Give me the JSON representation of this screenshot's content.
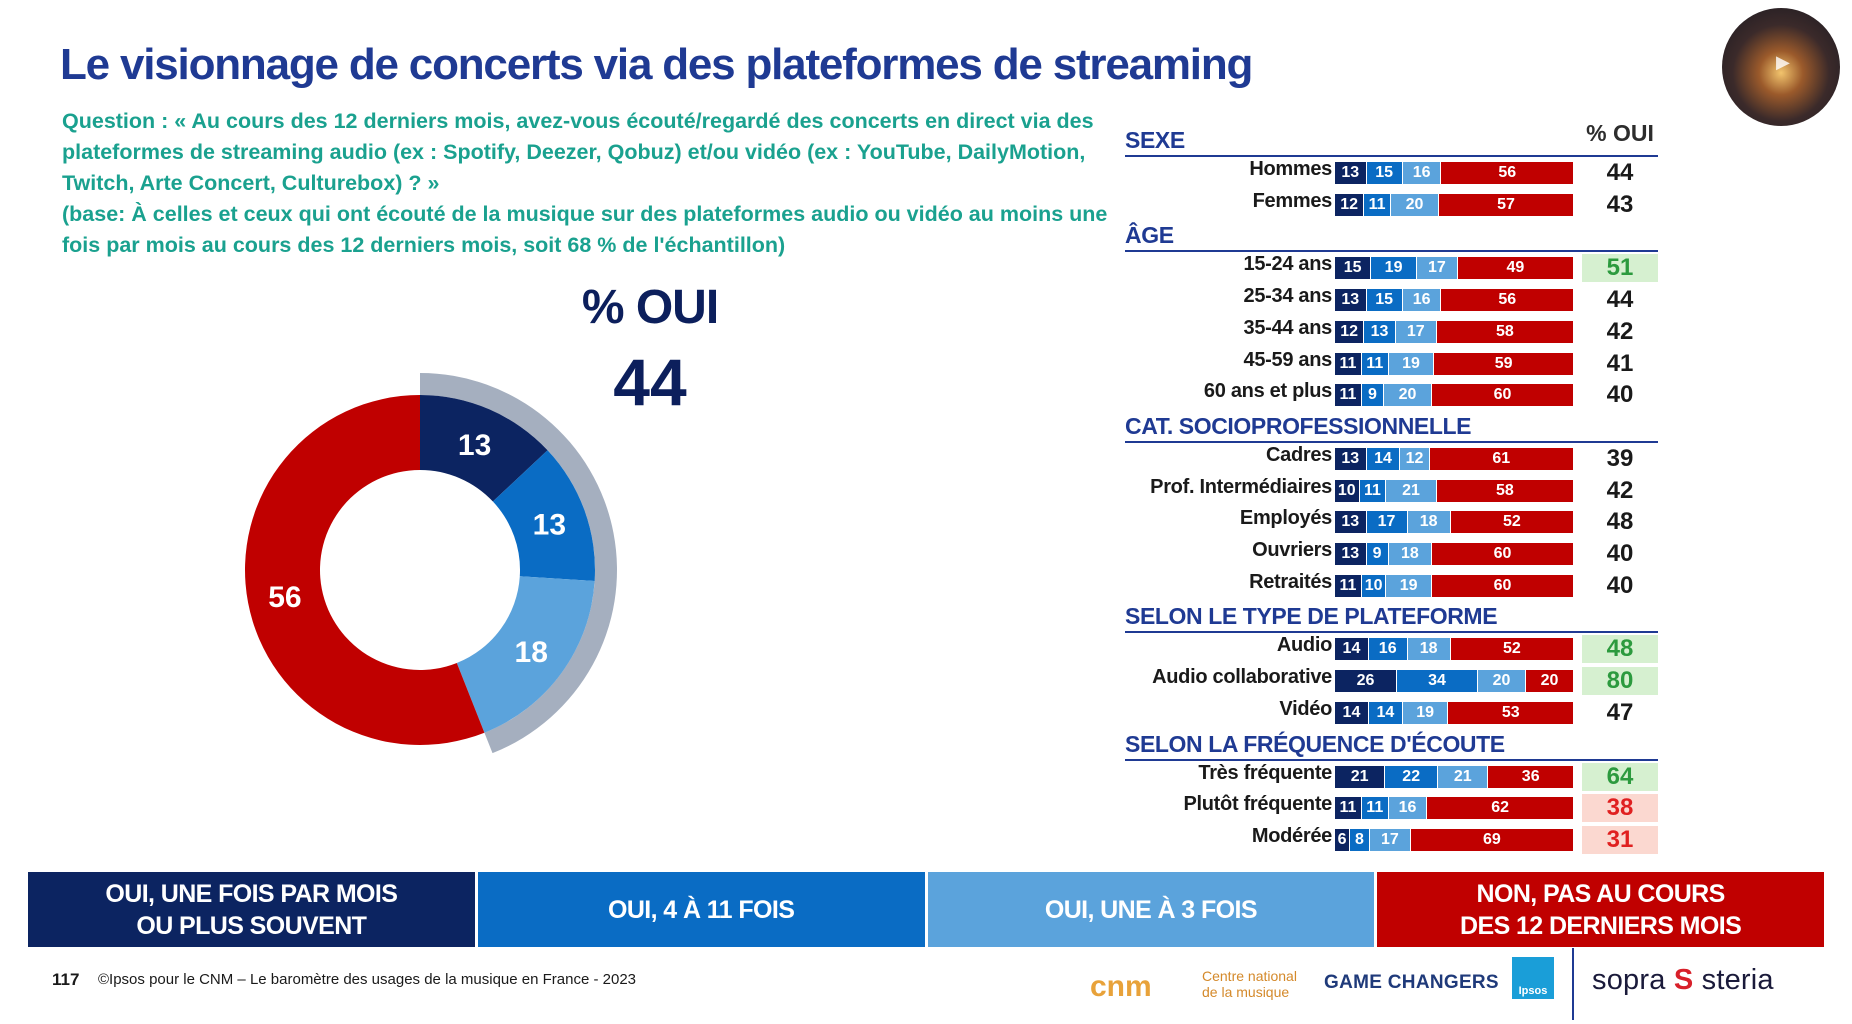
{
  "title": "Le visionnage de concerts via des plateformes de streaming",
  "question": "Question : « Au cours des 12 derniers mois, avez-vous écouté/regardé des concerts en direct via des plateformes de streaming audio (ex : Spotify, Deezer, Qobuz) et/ou vidéo (ex : YouTube, DailyMotion, Twitch, Arte Concert, Culturebox) ? »",
  "base": "(base: À celles et ceux qui ont écouté de la musique sur des plateformes audio ou vidéo au moins une fois par mois au cours des 12 derniers mois, soit 68 % de l'échantillon)",
  "colors": {
    "fois_par_mois": "#0c2461",
    "4_a_11": "#0a6cc4",
    "1_a_3": "#5ba3dc",
    "non": "#c00000",
    "arc": "#a5afbf",
    "highlight_green_bg": "#d6f0d0",
    "highlight_green_text": "#2c9a3e",
    "highlight_red_bg": "#fbd8d0",
    "highlight_red_text": "#e02020"
  },
  "chart_data": [
    {
      "type": "pie",
      "subtype": "donut",
      "labels": [
        "Oui, une fois par mois ou plus souvent",
        "Oui, 4 à 11 fois",
        "Oui, une à 3 fois",
        "Non, pas au cours des 12 derniers mois"
      ],
      "values": [
        13,
        13,
        18,
        56
      ],
      "summary_label": "% OUI",
      "summary_value": "44"
    },
    {
      "type": "bar",
      "subtype": "stacked-horizontal-100",
      "series_names": [
        "OUI, UNE FOIS PAR MOIS OU PLUS SOUVENT",
        "OUI, 4 À 11 FOIS",
        "OUI, UNE À 3 FOIS",
        "NON, PAS AU COURS DES 12 DERNIERS MOIS"
      ],
      "pct_header": "% OUI",
      "groups": [
        {
          "title": "SEXE",
          "rows": [
            {
              "label": "Hommes",
              "values": [
                13,
                15,
                16,
                56
              ],
              "oui": "44",
              "highlight": ""
            },
            {
              "label": "Femmes",
              "values": [
                12,
                11,
                20,
                57
              ],
              "oui": "43",
              "highlight": ""
            }
          ]
        },
        {
          "title": "ÂGE",
          "rows": [
            {
              "label": "15-24 ans",
              "values": [
                15,
                19,
                17,
                49
              ],
              "oui": "51",
              "highlight": "green"
            },
            {
              "label": "25-34 ans",
              "values": [
                13,
                15,
                16,
                56
              ],
              "oui": "44",
              "highlight": ""
            },
            {
              "label": "35-44 ans",
              "values": [
                12,
                13,
                17,
                58
              ],
              "oui": "42",
              "highlight": ""
            },
            {
              "label": "45-59 ans",
              "values": [
                11,
                11,
                19,
                59
              ],
              "oui": "41",
              "highlight": ""
            },
            {
              "label": "60 ans et plus",
              "values": [
                11,
                9,
                20,
                60
              ],
              "oui": "40",
              "highlight": ""
            }
          ]
        },
        {
          "title": "CAT. SOCIOPROFESSIONNELLE",
          "rows": [
            {
              "label": "Cadres",
              "values": [
                13,
                14,
                12,
                61
              ],
              "oui": "39",
              "highlight": ""
            },
            {
              "label": "Prof. Intermédiaires",
              "values": [
                10,
                11,
                21,
                58
              ],
              "oui": "42",
              "highlight": ""
            },
            {
              "label": "Employés",
              "values": [
                13,
                17,
                18,
                52
              ],
              "oui": "48",
              "highlight": ""
            },
            {
              "label": "Ouvriers",
              "values": [
                13,
                9,
                18,
                60
              ],
              "oui": "40",
              "highlight": ""
            },
            {
              "label": "Retraités",
              "values": [
                11,
                10,
                19,
                60
              ],
              "oui": "40",
              "highlight": ""
            }
          ]
        },
        {
          "title": "SELON LE TYPE DE PLATEFORME",
          "rows": [
            {
              "label": "Audio",
              "values": [
                14,
                16,
                18,
                52
              ],
              "oui": "48",
              "highlight": "green"
            },
            {
              "label": "Audio collaborative",
              "values": [
                26,
                34,
                20,
                20
              ],
              "oui": "80",
              "highlight": "green"
            },
            {
              "label": "Vidéo",
              "values": [
                14,
                14,
                19,
                53
              ],
              "oui": "47",
              "highlight": ""
            }
          ]
        },
        {
          "title": "SELON LA FRÉQUENCE D'ÉCOUTE",
          "rows": [
            {
              "label": "Très fréquente",
              "values": [
                21,
                22,
                21,
                36
              ],
              "oui": "64",
              "highlight": "green"
            },
            {
              "label": "Plutôt fréquente",
              "values": [
                11,
                11,
                16,
                62
              ],
              "oui": "38",
              "highlight": "red"
            },
            {
              "label": "Modérée",
              "values": [
                6,
                8,
                17,
                69
              ],
              "oui": "31",
              "highlight": "red"
            }
          ]
        }
      ]
    }
  ],
  "legend": [
    {
      "label": "OUI, UNE FOIS PAR MOIS\nOU PLUS SOUVENT",
      "color": "#0c2461"
    },
    {
      "label": "OUI, 4 À 11 FOIS",
      "color": "#0a6cc4"
    },
    {
      "label": "OUI, UNE À 3 FOIS",
      "color": "#5ba3dc"
    },
    {
      "label": "NON, PAS AU COURS\nDES 12 DERNIERS MOIS",
      "color": "#c00000"
    }
  ],
  "footer": {
    "page_number": "117",
    "text": "©Ipsos pour le CNM – Le baromètre des usages de la musique en France - 2023",
    "cnm_logo": "cnm",
    "cnm_text_line1": "Centre national",
    "cnm_text_line2": "de la musique",
    "game_changers": "GAME CHANGERS",
    "ipsos": "Ipsos",
    "sopra_part1": "sopra",
    "sopra_part2": "steria"
  }
}
